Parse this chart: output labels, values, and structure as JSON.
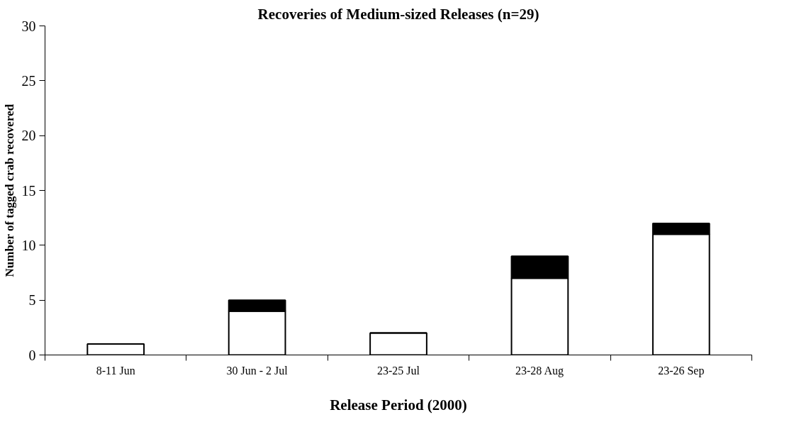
{
  "chart_data": {
    "type": "bar",
    "title": "Recoveries of Medium-sized Releases (n=29)",
    "xlabel": "Release Period (2000)",
    "ylabel": "Number of tagged crab recovered",
    "categories": [
      "8-11 Jun",
      "30 Jun - 2 Jul",
      "23-25 Jul",
      "23-28 Aug",
      "23-26 Sep"
    ],
    "stacked": true,
    "series": [
      {
        "color": "#ffffff",
        "values": [
          1,
          4,
          2,
          7,
          11
        ]
      },
      {
        "color": "#000000",
        "values": [
          0,
          1,
          0,
          2,
          1
        ]
      }
    ],
    "ylim": [
      0,
      30
    ],
    "yticks": [
      0,
      5,
      10,
      15,
      20,
      25,
      30
    ],
    "grid": false
  }
}
